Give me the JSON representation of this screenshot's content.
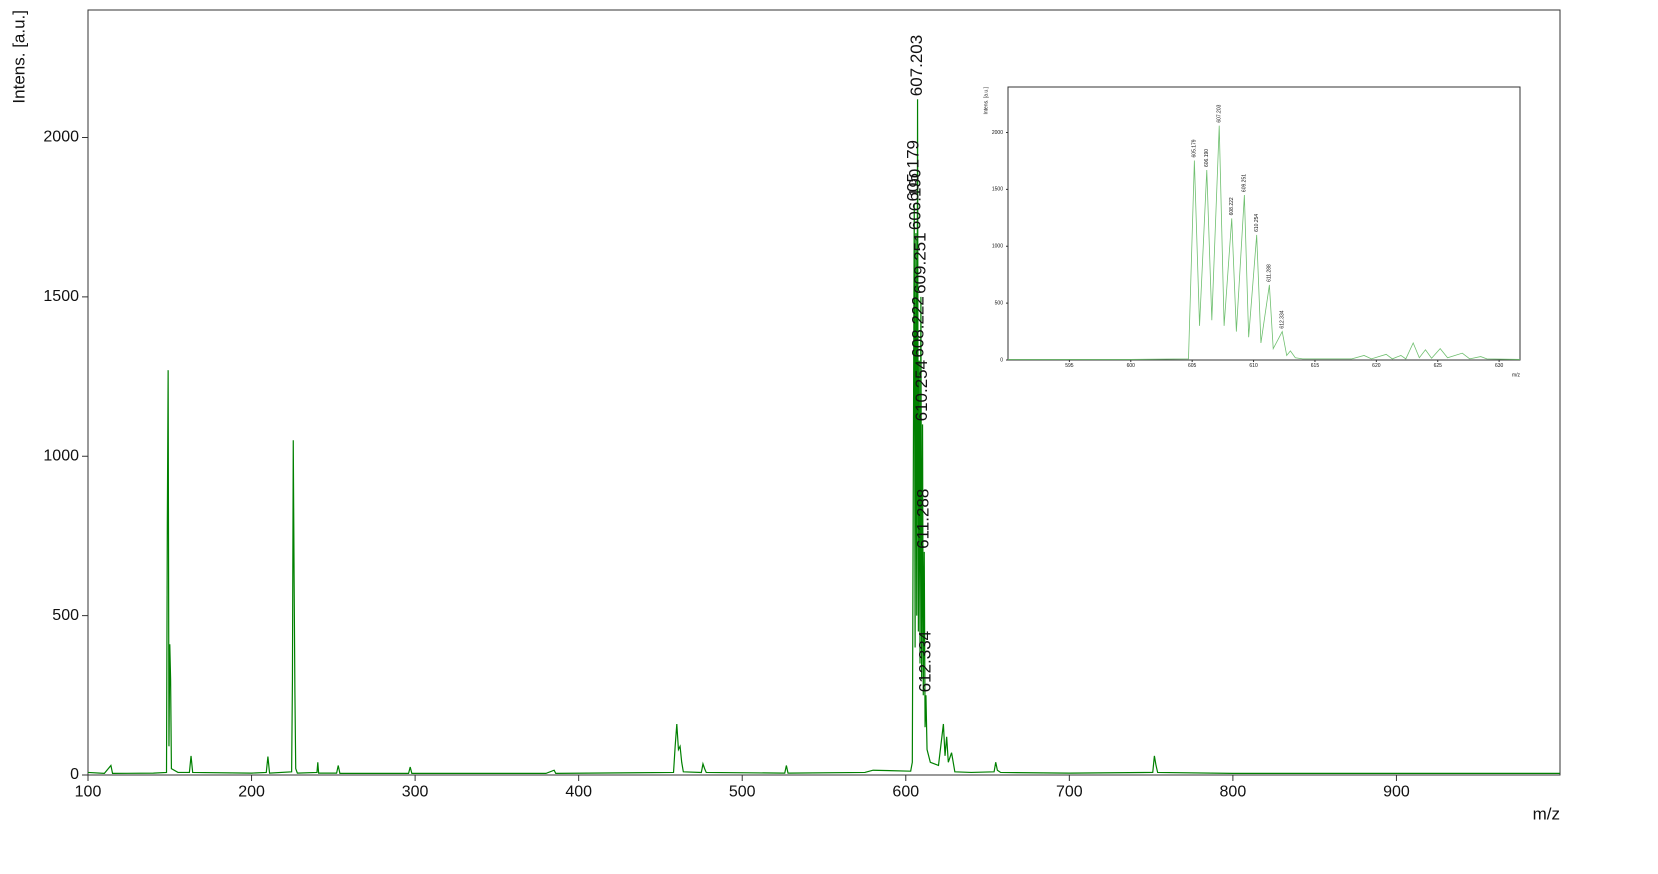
{
  "chart_data": [
    {
      "type": "line",
      "ylabel": "Intens. [a.u.]",
      "xlabel": "m/z",
      "color": "#008000",
      "xlim": [
        100,
        1000
      ],
      "ylim": [
        0,
        2400
      ],
      "xticks": [
        100,
        200,
        300,
        400,
        500,
        600,
        700,
        800,
        900
      ],
      "yticks": [
        0,
        500,
        1000,
        1500,
        2000
      ],
      "x": [
        100,
        110,
        114,
        115,
        140,
        148,
        148.5,
        149,
        149.5,
        150,
        150.5,
        151,
        155,
        162,
        163,
        164,
        200,
        209,
        210,
        211,
        224.5,
        225,
        225.5,
        226,
        226.5,
        227,
        228,
        240,
        240.5,
        241,
        252,
        253,
        254,
        296,
        297,
        298,
        380,
        385,
        386,
        458,
        459,
        460,
        461,
        462,
        463,
        464,
        475,
        476,
        477,
        478,
        526,
        527,
        528,
        575,
        580,
        603,
        604,
        605.179,
        605.7,
        606.19,
        606.7,
        607.203,
        607.7,
        608.222,
        608.7,
        609.251,
        609.7,
        610.254,
        610.7,
        611.288,
        611.8,
        612.334,
        613,
        615,
        620,
        623,
        624,
        625,
        626,
        628,
        630,
        640,
        654,
        655,
        656,
        658,
        700,
        751,
        752,
        753,
        754,
        800,
        900,
        1000
      ],
      "values": [
        8,
        5,
        30,
        5,
        6,
        8,
        790,
        1270,
        90,
        410,
        300,
        20,
        8,
        8,
        60,
        8,
        6,
        8,
        58,
        6,
        10,
        300,
        1050,
        630,
        260,
        20,
        6,
        8,
        40,
        6,
        6,
        30,
        5,
        5,
        25,
        5,
        5,
        15,
        5,
        8,
        90,
        160,
        80,
        90,
        40,
        10,
        8,
        35,
        20,
        8,
        6,
        30,
        6,
        8,
        15,
        12,
        40,
        1790,
        400,
        1700,
        500,
        2120,
        450,
        1300,
        350,
        1500,
        300,
        1100,
        250,
        700,
        150,
        250,
        80,
        40,
        30,
        160,
        60,
        120,
        40,
        70,
        10,
        8,
        10,
        40,
        15,
        8,
        6,
        8,
        60,
        30,
        8,
        5,
        5,
        5
      ],
      "annotations": [
        {
          "text": "607.203",
          "x": 607.203,
          "y": 2120
        },
        {
          "text": "605.179",
          "x": 605.179,
          "y": 1790
        },
        {
          "text": "606.190",
          "x": 606.19,
          "y": 1700
        },
        {
          "text": "609.251",
          "x": 609.251,
          "y": 1500
        },
        {
          "text": "608.222",
          "x": 608.222,
          "y": 1300
        },
        {
          "text": "610.254",
          "x": 610.254,
          "y": 1100
        },
        {
          "text": "611.288",
          "x": 611.288,
          "y": 700
        },
        {
          "text": "612.334",
          "x": 612.334,
          "y": 250
        }
      ]
    },
    {
      "type": "line",
      "ylabel": "Intens. [a.u.]",
      "xlabel": "m/z",
      "color": "#6fbf6f",
      "xlim": [
        590,
        631.7
      ],
      "ylim": [
        0,
        2400
      ],
      "xticks": [
        595,
        600,
        605,
        610,
        615,
        620,
        625,
        630
      ],
      "yticks": [
        0,
        500,
        1000,
        1500,
        2000
      ],
      "x": [
        590,
        600,
        604.7,
        605.179,
        605.6,
        606.19,
        606.6,
        607.203,
        607.6,
        608.222,
        608.6,
        609.251,
        609.6,
        610.254,
        610.6,
        611.288,
        611.6,
        612.334,
        612.7,
        613,
        613.4,
        614,
        618,
        619,
        619.6,
        620.8,
        621.3,
        622,
        622.4,
        623,
        623.5,
        624,
        624.5,
        625.2,
        625.8,
        627,
        627.6,
        628.5,
        629,
        631.7
      ],
      "values": [
        5,
        5,
        10,
        1754,
        300,
        1670,
        350,
        2060,
        300,
        1245,
        250,
        1450,
        200,
        1100,
        150,
        660,
        100,
        250,
        40,
        80,
        20,
        10,
        10,
        40,
        10,
        50,
        10,
        40,
        10,
        150,
        20,
        90,
        15,
        100,
        20,
        60,
        10,
        30,
        10,
        5
      ],
      "annotations": [
        {
          "text": "605.179",
          "x": 605.179,
          "y": 1754
        },
        {
          "text": "606.190",
          "x": 606.19,
          "y": 1670
        },
        {
          "text": "607.203",
          "x": 607.203,
          "y": 2060
        },
        {
          "text": "608.222",
          "x": 608.222,
          "y": 1245
        },
        {
          "text": "609.251",
          "x": 609.251,
          "y": 1450
        },
        {
          "text": "610.254",
          "x": 610.254,
          "y": 1100
        },
        {
          "text": "611.288",
          "x": 611.288,
          "y": 660
        },
        {
          "text": "612.334",
          "x": 612.334,
          "y": 250
        }
      ]
    }
  ]
}
